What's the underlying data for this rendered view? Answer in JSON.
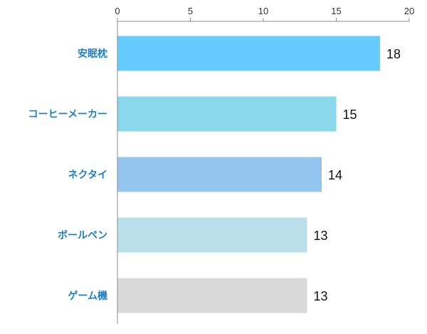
{
  "chart_data": {
    "type": "bar",
    "orientation": "horizontal",
    "title": "",
    "xlabel": "",
    "ylabel": "",
    "categories": [
      "安眠枕",
      "コーヒーメーカー",
      "ネクタイ",
      "ボールペン",
      "ゲーム機"
    ],
    "values": [
      18,
      15,
      14,
      13,
      13
    ],
    "bar_colors": [
      "#66ccff",
      "#88d7ea",
      "#93c5ee",
      "#b9e0ea",
      "#d9d9d9"
    ],
    "xlim": [
      0,
      20
    ],
    "xticks": [
      0,
      5,
      10,
      15,
      20
    ],
    "x_axis_position": "top",
    "grid": false,
    "legend": "none",
    "category_label_color": "#1f7fc4",
    "data_labels": [
      "18",
      "15",
      "14",
      "13",
      "13"
    ]
  }
}
